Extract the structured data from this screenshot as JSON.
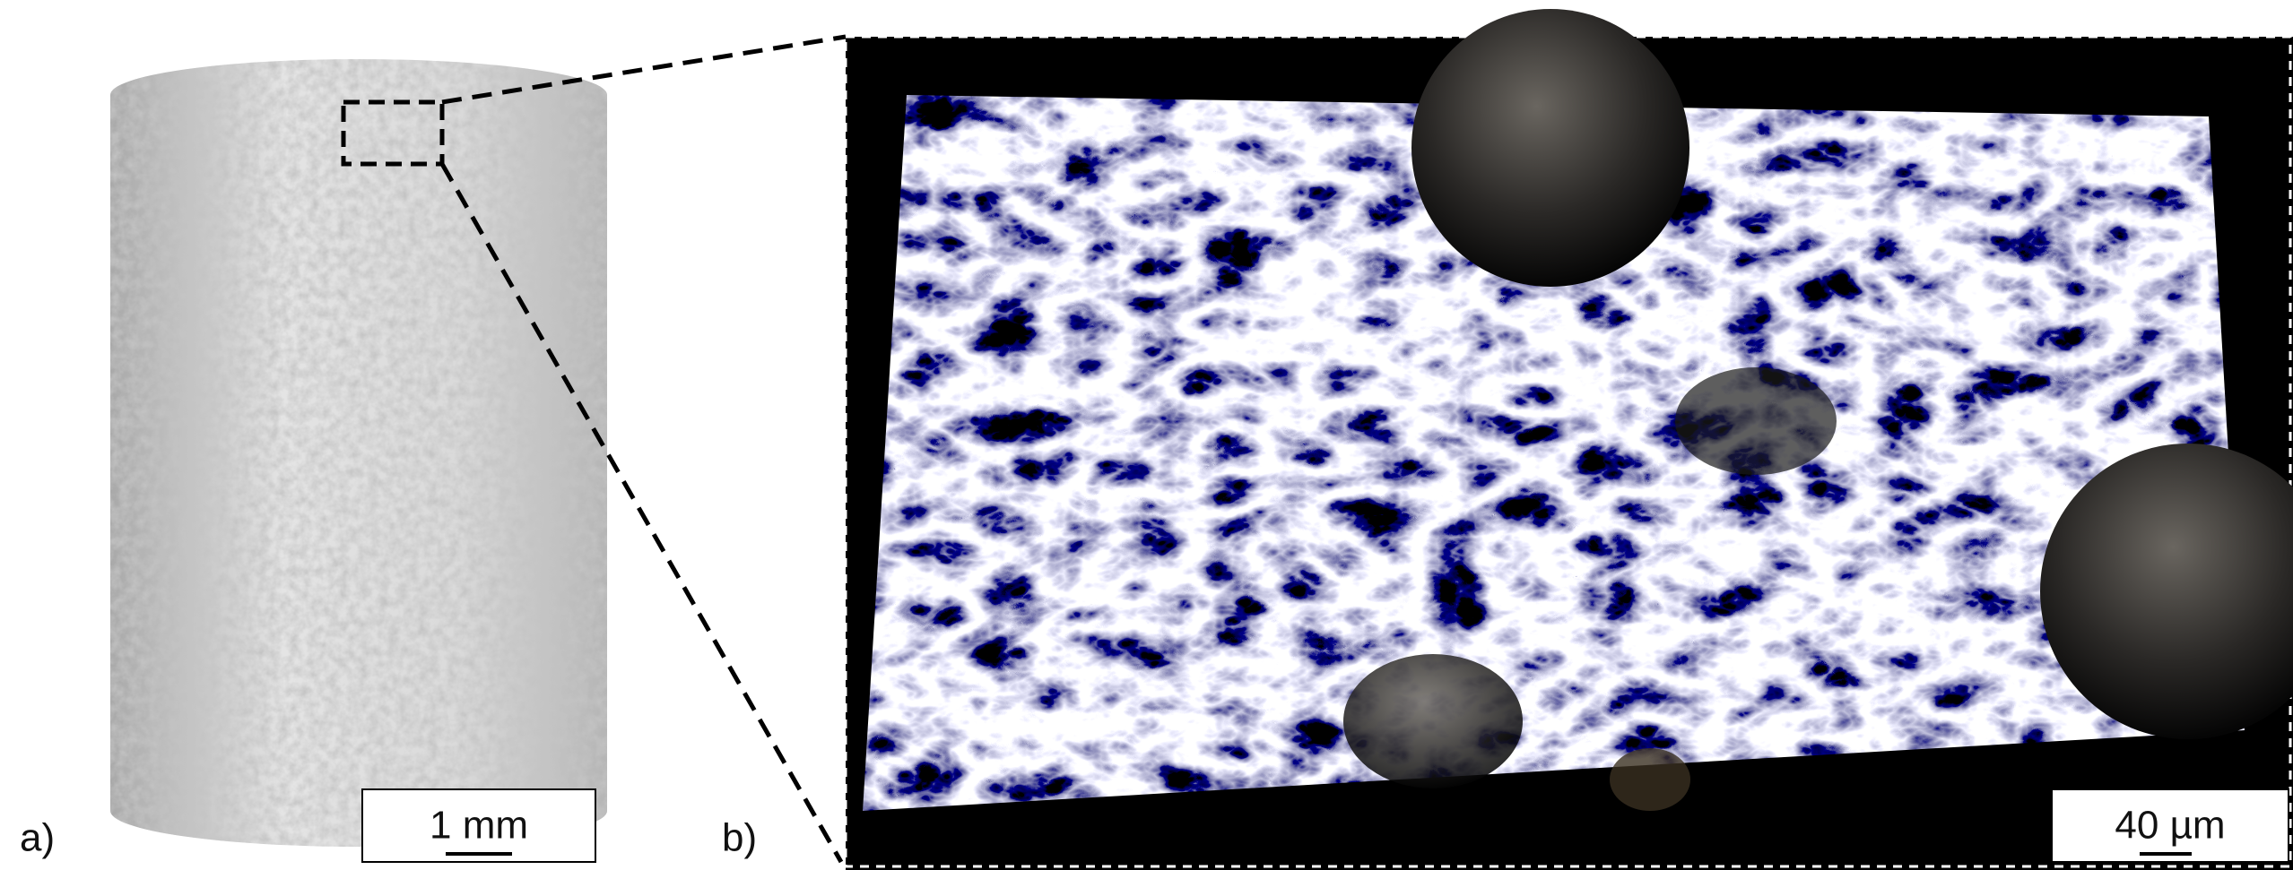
{
  "panels": [
    {
      "label": "a)",
      "scale_bar": "1 mm"
    },
    {
      "label": "b)",
      "scale_bar": "40 µm"
    }
  ]
}
